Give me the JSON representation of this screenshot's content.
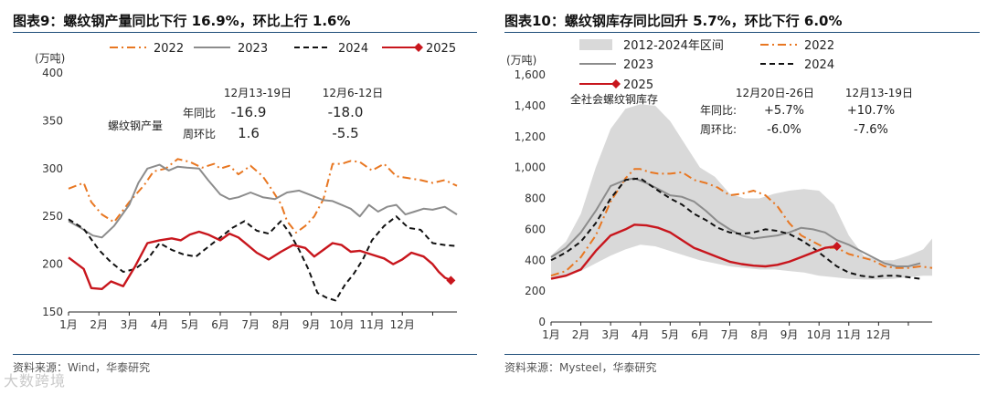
{
  "chart_data": [
    {
      "type": "line",
      "title": "图表9：螺纹钢产量同比下行 16.9%，环比上行 1.6%",
      "ylabel": "(万吨)",
      "ylim": [
        150,
        400
      ],
      "yticks": [
        150,
        200,
        250,
        300,
        350,
        400
      ],
      "months": [
        "1月",
        "2月",
        "3月",
        "4月",
        "5月",
        "6月",
        "7月",
        "8月",
        "9月",
        "10月",
        "11月",
        "12月"
      ],
      "xlim": [
        0,
        12.8
      ],
      "legend": [
        "2022",
        "2023",
        "2024",
        "2025"
      ],
      "series": [
        {
          "name": "2022",
          "color": "#e87722",
          "dash": "dashdot",
          "x": [
            0,
            0.5,
            0.75,
            1.1,
            1.5,
            2,
            2.5,
            2.8,
            3.2,
            3.6,
            4,
            4.4,
            4.8,
            5,
            5.3,
            5.6,
            6,
            6.4,
            6.7,
            7,
            7.2,
            7.5,
            7.8,
            8.1,
            8.4,
            8.7,
            9,
            9.3,
            9.6,
            10,
            10.4,
            10.8,
            11.2,
            11.6,
            12,
            12.4,
            12.8
          ],
          "values": [
            279,
            285,
            265,
            252,
            244,
            265,
            283,
            297,
            300,
            310,
            307,
            301,
            305,
            300,
            303,
            294,
            303,
            292,
            278,
            263,
            245,
            233,
            240,
            250,
            268,
            305,
            305,
            308,
            307,
            298,
            305,
            292,
            290,
            288,
            285,
            288,
            282
          ]
        },
        {
          "name": "2023",
          "color": "#8c8c8c",
          "dash": "solid",
          "x": [
            0,
            0.4,
            0.8,
            1.1,
            1.5,
            2,
            2.3,
            2.6,
            3,
            3.3,
            3.6,
            3.9,
            4.3,
            4.6,
            5,
            5.3,
            5.6,
            6,
            6.4,
            6.8,
            7.2,
            7.6,
            8,
            8.4,
            8.7,
            9,
            9.3,
            9.6,
            9.9,
            10.2,
            10.5,
            10.8,
            11.1,
            11.4,
            11.7,
            12,
            12.4,
            12.8
          ],
          "values": [
            245,
            238,
            230,
            228,
            240,
            262,
            285,
            300,
            304,
            298,
            302,
            301,
            300,
            288,
            273,
            268,
            270,
            275,
            270,
            268,
            275,
            277,
            272,
            267,
            266,
            262,
            258,
            250,
            262,
            255,
            260,
            262,
            252,
            255,
            258,
            257,
            260,
            252
          ]
        },
        {
          "name": "2024",
          "color": "#111111",
          "dash": "dashed",
          "x": [
            0,
            0.5,
            1,
            1.4,
            1.8,
            2.2,
            2.6,
            3,
            3.4,
            3.8,
            4.2,
            4.6,
            5,
            5.4,
            5.8,
            6.2,
            6.6,
            7,
            7.3,
            7.6,
            7.9,
            8.2,
            8.5,
            8.8,
            9.1,
            9.4,
            9.7,
            10,
            10.4,
            10.8,
            11.2,
            11.6,
            12,
            12.4,
            12.8
          ],
          "values": [
            247,
            237,
            215,
            202,
            192,
            195,
            205,
            222,
            215,
            210,
            208,
            218,
            228,
            238,
            245,
            235,
            232,
            245,
            232,
            215,
            195,
            170,
            165,
            162,
            178,
            190,
            205,
            225,
            240,
            250,
            238,
            236,
            222,
            220,
            219
          ]
        },
        {
          "name": "2025",
          "color": "#c8161d",
          "dash": "solid",
          "x": [
            0,
            0.5,
            0.75,
            1.1,
            1.4,
            1.8,
            2.2,
            2.6,
            3,
            3.4,
            3.7,
            4,
            4.3,
            4.6,
            5,
            5.3,
            5.6,
            5.9,
            6.2,
            6.6,
            7,
            7.4,
            7.8,
            8.1,
            8.4,
            8.7,
            9,
            9.3,
            9.6,
            10,
            10.4,
            10.7,
            11,
            11.3,
            11.7,
            12,
            12.2,
            12.4,
            12.6
          ],
          "values": [
            207,
            195,
            175,
            174,
            182,
            177,
            198,
            222,
            225,
            227,
            225,
            231,
            234,
            231,
            225,
            232,
            228,
            220,
            212,
            205,
            213,
            220,
            217,
            208,
            215,
            222,
            220,
            213,
            214,
            210,
            206,
            200,
            205,
            212,
            208,
            200,
            192,
            186,
            183
          ]
        }
      ],
      "marker": {
        "series": "2025",
        "x": 12.6,
        "value": 183,
        "shape": "diamond"
      },
      "annotation": {
        "headers": [
          "12月13-19日",
          "12月6-12日"
        ],
        "rows": [
          {
            "label": "年同比",
            "values": [
              "-16.9",
              "-18.0"
            ]
          },
          {
            "label": "周环比",
            "values": [
              "1.6",
              "-5.5"
            ]
          }
        ],
        "name": "螺纹钢产量"
      },
      "source": "资料来源：Wind，华泰研究"
    },
    {
      "type": "area+line",
      "title": "图表10：螺纹钢库存同比回升 5.7%，环比下行 6.0%",
      "ylabel": "(万吨)",
      "ylim": [
        0,
        1600
      ],
      "yticks": [
        0,
        200,
        400,
        600,
        800,
        1000,
        1200,
        1400,
        1600
      ],
      "ytick_labels": [
        "0",
        "200",
        "400",
        "600",
        "800",
        "1,000",
        "1,200",
        "1,400",
        "1,600"
      ],
      "months": [
        "1月",
        "2月",
        "3月",
        "4月",
        "5月",
        "6月",
        "7月",
        "8月",
        "9月",
        "10月",
        "11月",
        "12月"
      ],
      "xlim": [
        0,
        12.8
      ],
      "legend": [
        "2012-2024年区间",
        "2022",
        "2023",
        "2024",
        "2025"
      ],
      "band": {
        "name": "2012-2024年区间",
        "color": "#d9d9d9",
        "x": [
          0,
          0.5,
          1,
          1.5,
          2,
          2.5,
          3,
          3.5,
          4,
          4.5,
          5,
          5.5,
          6,
          6.5,
          7,
          7.5,
          8,
          8.5,
          9,
          9.5,
          10,
          10.5,
          11,
          11.5,
          12,
          12.5,
          12.8
        ],
        "upper": [
          430,
          520,
          700,
          1000,
          1250,
          1380,
          1410,
          1400,
          1300,
          1150,
          1000,
          940,
          830,
          800,
          800,
          830,
          850,
          860,
          850,
          760,
          560,
          430,
          400,
          400,
          430,
          470,
          540
        ],
        "lower": [
          280,
          300,
          330,
          380,
          430,
          470,
          500,
          490,
          460,
          430,
          400,
          380,
          360,
          350,
          340,
          340,
          330,
          320,
          300,
          290,
          280,
          275,
          275,
          280,
          290,
          300,
          300
        ]
      },
      "series": [
        {
          "name": "2022",
          "color": "#e87722",
          "dash": "dashdot",
          "x": [
            0,
            0.5,
            1,
            1.5,
            2,
            2.5,
            2.8,
            3,
            3.3,
            3.6,
            4,
            4.4,
            4.8,
            5.2,
            5.6,
            6,
            6.4,
            6.8,
            7.2,
            7.6,
            8,
            8.4,
            8.8,
            9.2,
            9.6,
            10,
            10.4,
            10.8,
            11.2,
            11.6,
            12,
            12.4,
            12.8
          ],
          "values": [
            300,
            330,
            420,
            560,
            780,
            930,
            990,
            990,
            970,
            960,
            960,
            970,
            920,
            900,
            870,
            820,
            830,
            850,
            820,
            750,
            640,
            560,
            520,
            480,
            480,
            440,
            420,
            400,
            360,
            350,
            350,
            360,
            350
          ]
        },
        {
          "name": "2023",
          "color": "#8c8c8c",
          "dash": "solid",
          "x": [
            0,
            0.5,
            1,
            1.5,
            2,
            2.5,
            2.8,
            3.2,
            3.6,
            4,
            4.4,
            4.8,
            5.2,
            5.6,
            6,
            6.4,
            6.8,
            7.2,
            7.6,
            8,
            8.4,
            8.8,
            9.2,
            9.6,
            10,
            10.4,
            10.8,
            11.2,
            11.6,
            12,
            12.4
          ],
          "values": [
            420,
            480,
            580,
            720,
            880,
            920,
            930,
            900,
            860,
            820,
            810,
            780,
            720,
            650,
            600,
            560,
            540,
            550,
            560,
            580,
            610,
            600,
            580,
            530,
            500,
            460,
            420,
            380,
            360,
            360,
            380
          ]
        },
        {
          "name": "2024",
          "color": "#111111",
          "dash": "dashed",
          "x": [
            0,
            0.5,
            1,
            1.5,
            2,
            2.5,
            3,
            3.3,
            3.6,
            4,
            4.4,
            4.8,
            5.2,
            5.6,
            6,
            6.4,
            6.8,
            7.2,
            7.6,
            8,
            8.4,
            8.8,
            9.2,
            9.6,
            10,
            10.4,
            10.8,
            11.2,
            11.6,
            12,
            12.4
          ],
          "values": [
            400,
            450,
            520,
            640,
            800,
            920,
            930,
            890,
            850,
            800,
            760,
            700,
            660,
            610,
            580,
            570,
            580,
            600,
            590,
            570,
            530,
            480,
            420,
            360,
            320,
            300,
            290,
            300,
            300,
            290,
            280
          ]
        },
        {
          "name": "2025",
          "color": "#c8161d",
          "dash": "solid",
          "x": [
            0,
            0.5,
            1,
            1.5,
            2,
            2.5,
            2.8,
            3.2,
            3.6,
            4,
            4.4,
            4.8,
            5.2,
            5.6,
            6,
            6.4,
            6.8,
            7.2,
            7.6,
            8,
            8.4,
            8.8,
            9.2,
            9.6
          ],
          "values": [
            280,
            300,
            340,
            460,
            560,
            600,
            630,
            625,
            610,
            580,
            530,
            480,
            450,
            420,
            390,
            375,
            365,
            360,
            370,
            390,
            420,
            450,
            480,
            490
          ]
        }
      ],
      "marker": {
        "series": "2025",
        "x": 9.6,
        "value": 490,
        "shape": "diamond"
      },
      "annotation": {
        "headers": [
          "12月20日-26日",
          "12月13-19日"
        ],
        "rows": [
          {
            "label": "年同比:",
            "values": [
              "+5.7%",
              "+10.7%"
            ]
          },
          {
            "label": "周环比:",
            "values": [
              "-6.0%",
              "-7.6%"
            ]
          }
        ],
        "name": "全社会螺纹钢库存"
      },
      "source": "资料来源：Mysteel，华泰研究"
    }
  ],
  "watermark": "大数跨境"
}
